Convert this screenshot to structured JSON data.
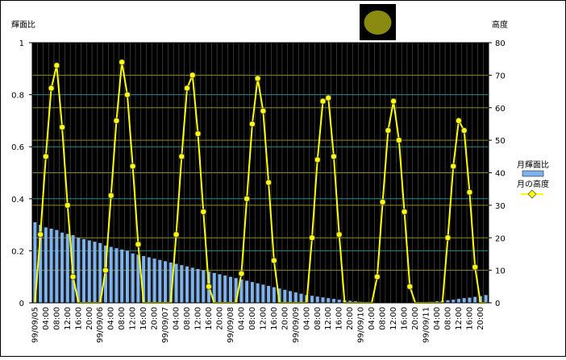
{
  "chart_data": {
    "type": "combo",
    "ylabel": "輝面比",
    "y2label": "高度",
    "categories": [
      "99/09/05",
      null,
      "04:00",
      null,
      "08:00",
      null,
      "12:00",
      null,
      "16:00",
      null,
      "20:00",
      null,
      "99/09/06",
      null,
      "04:00",
      null,
      "08:00",
      null,
      "12:00",
      null,
      "16:00",
      null,
      "20:00",
      null,
      "99/09/07",
      null,
      "04:00",
      null,
      "08:00",
      null,
      "12:00",
      null,
      "16:00",
      null,
      "20:00",
      null,
      "99/09/08",
      null,
      "04:00",
      null,
      "08:00",
      null,
      "12:00",
      null,
      "16:00",
      null,
      "20:00",
      null,
      "99/09/09",
      null,
      "04:00",
      null,
      "08:00",
      null,
      "12:00",
      null,
      "16:00",
      null,
      "20:00",
      null,
      "99/09/10",
      null,
      "04:00",
      null,
      "08:00",
      null,
      "12:00",
      null,
      "16:00",
      null,
      "20:00",
      null,
      "99/09/11",
      null,
      "04:00",
      null,
      "08:00",
      null,
      "12:00",
      null,
      "16:00",
      null,
      "20:00",
      null
    ],
    "series": [
      {
        "name": "月輝面比",
        "type": "bar",
        "color": "#7fb2ec",
        "values": [
          0.31,
          0.3,
          0.29,
          0.285,
          0.28,
          0.27,
          0.265,
          0.26,
          0.25,
          0.245,
          0.24,
          0.235,
          0.23,
          0.22,
          0.215,
          0.21,
          0.205,
          0.2,
          0.19,
          0.185,
          0.18,
          0.175,
          0.17,
          0.165,
          0.16,
          0.155,
          0.15,
          0.145,
          0.14,
          0.135,
          0.13,
          0.125,
          0.12,
          0.115,
          0.11,
          0.105,
          0.1,
          0.095,
          0.09,
          0.085,
          0.08,
          0.075,
          0.07,
          0.065,
          0.06,
          0.055,
          0.05,
          0.045,
          0.04,
          0.035,
          0.03,
          0.027,
          0.024,
          0.021,
          0.018,
          0.015,
          0.012,
          0.01,
          0.008,
          0.006,
          0.004,
          0.003,
          0.002,
          0.001,
          0,
          0,
          0,
          0,
          0,
          0,
          0.001,
          0.002,
          0.003,
          0.004,
          0.006,
          0.008,
          0.01,
          0.012,
          0.015,
          0.018,
          0.02,
          0.023,
          0.026,
          0.03
        ]
      },
      {
        "name": "月の高度",
        "type": "line",
        "axis": "y2",
        "color": "#ffff00",
        "values": [
          0,
          21,
          45,
          66,
          73,
          54,
          30,
          8,
          0,
          0,
          0,
          0,
          0,
          10,
          33,
          56,
          74,
          64,
          42,
          18,
          0,
          0,
          0,
          0,
          0,
          0,
          21,
          45,
          66,
          70,
          52,
          28,
          5,
          0,
          0,
          0,
          0,
          0,
          9,
          32,
          55,
          69,
          59,
          37,
          13,
          0,
          0,
          0,
          0,
          0,
          0,
          20,
          44,
          62,
          63,
          45,
          21,
          0,
          0,
          0,
          0,
          0,
          0,
          8,
          31,
          53,
          62,
          50,
          28,
          5,
          0,
          0,
          0,
          0,
          0,
          0,
          20,
          42,
          56,
          53,
          34,
          11,
          0,
          0
        ]
      }
    ],
    "ylim": [
      0,
      1
    ],
    "yticks": [
      0,
      0.2,
      0.4,
      0.6,
      0.8,
      1
    ],
    "y2lim": [
      0,
      80
    ],
    "y2ticks": [
      0,
      10,
      20,
      30,
      40,
      50,
      60,
      70,
      80
    ],
    "grid": true
  }
}
